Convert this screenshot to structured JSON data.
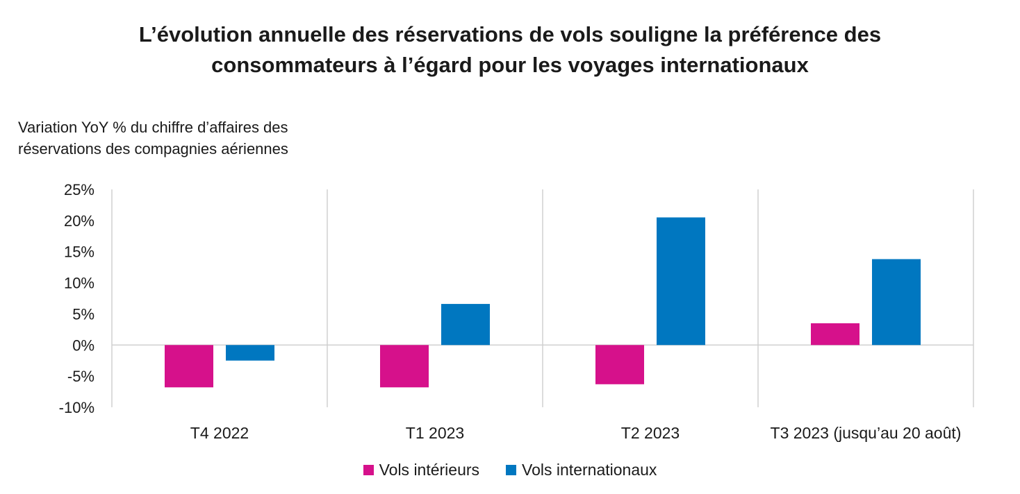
{
  "chart_data": {
    "type": "bar",
    "title_lines": [
      "L’évolution annuelle des réservations de vols souligne la préférence des",
      "consommateurs à l’égard pour les voyages internationaux"
    ],
    "ylabel_lines": [
      "Variation YoY % du chiffre d’affaires des",
      "réservations des compagnies aériennes"
    ],
    "categories": [
      "T4 2022",
      "T1 2023",
      "T2 2023",
      "T3 2023 (jusqu’au 20 août)"
    ],
    "series": [
      {
        "name": "Vols intérieurs",
        "color": "#d6118b",
        "values": [
          -6.8,
          -6.8,
          -6.3,
          3.5
        ]
      },
      {
        "name": "Vols internationaux",
        "color": "#0077c0",
        "values": [
          -2.5,
          6.6,
          20.5,
          13.8
        ]
      }
    ],
    "ylim": [
      -10,
      25
    ],
    "yticks": [
      25,
      20,
      15,
      10,
      5,
      0,
      -5,
      -10
    ],
    "ytick_labels": [
      "25%",
      "20%",
      "15%",
      "10%",
      "5%",
      "0%",
      "-5%",
      "-10%"
    ],
    "grid": "vertical category separators",
    "legend_position": "bottom-center"
  }
}
